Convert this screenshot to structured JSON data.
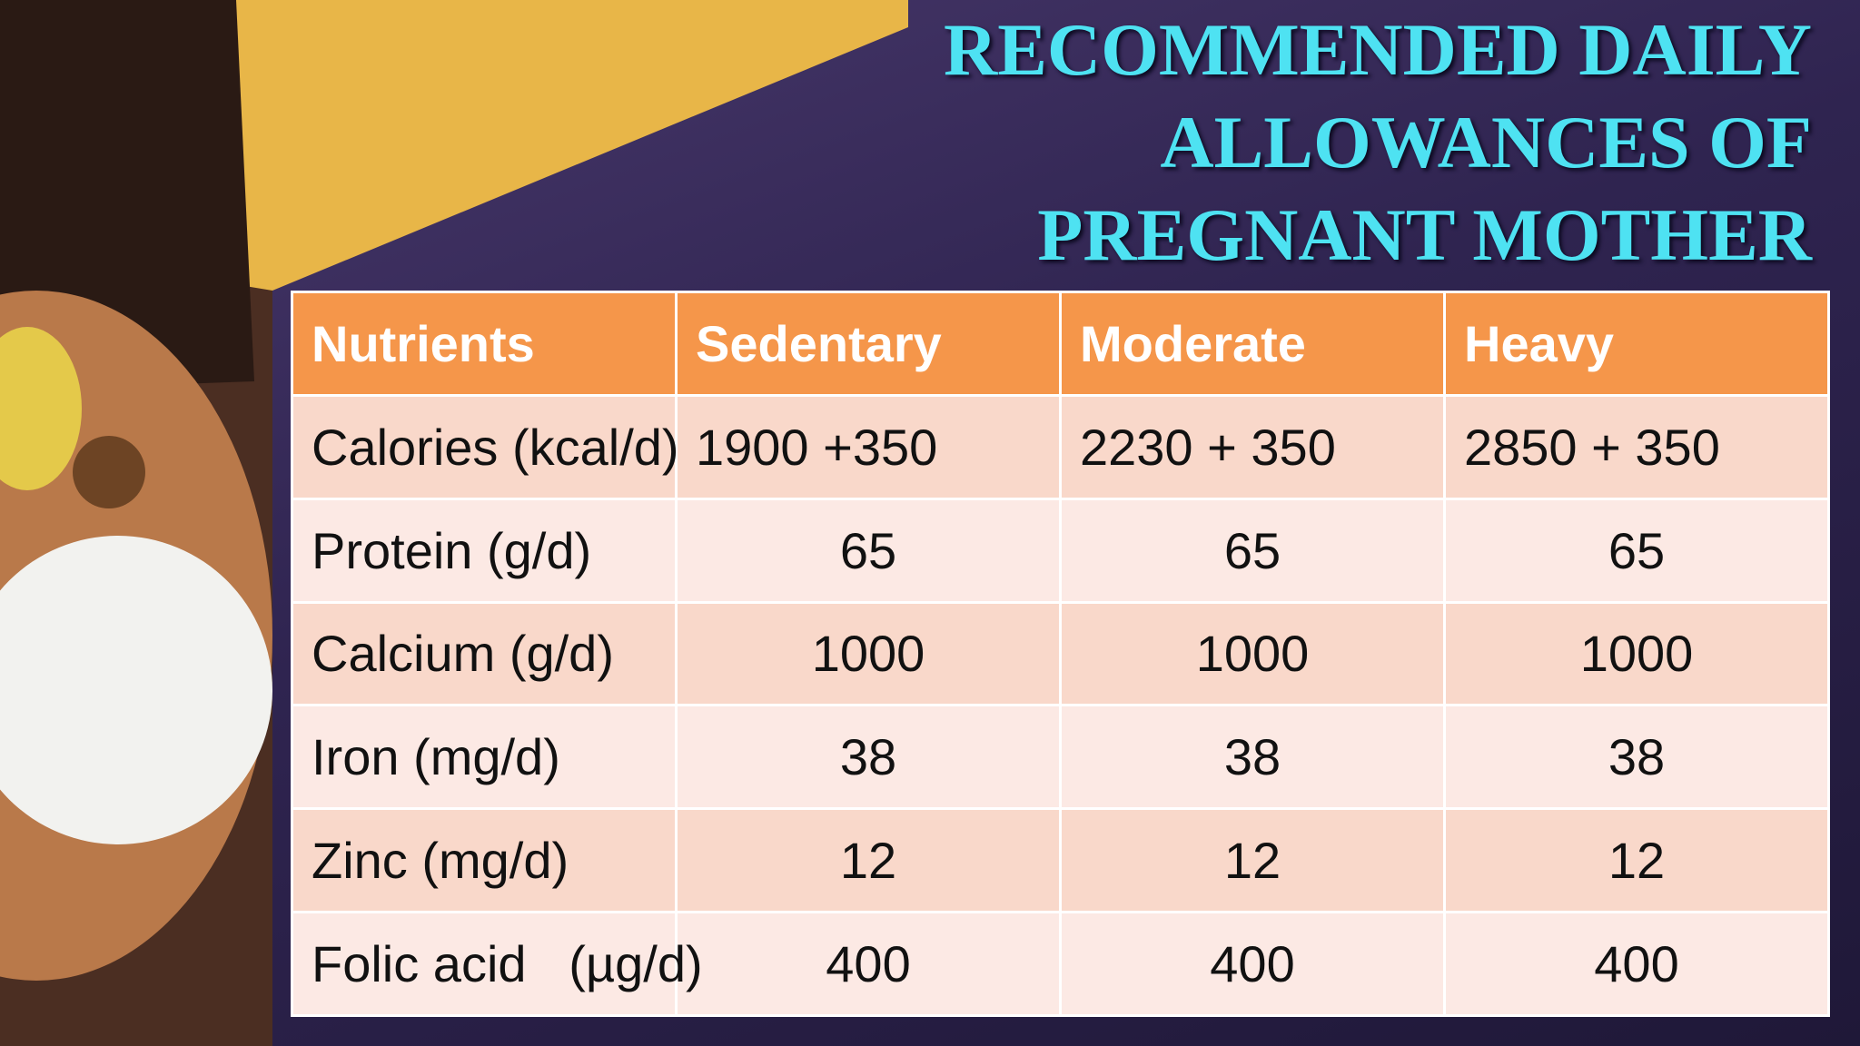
{
  "header": {
    "title_lines": [
      "RECOMMENDED DAILY",
      "ALLOWANCES OF",
      "PREGNANT MOTHER"
    ]
  },
  "table": {
    "columns": [
      "Nutrients",
      "Sedentary",
      "Moderate",
      "Heavy"
    ],
    "rows": [
      [
        "Calories (kcal/d)",
        "1900 +350",
        "2230 + 350",
        "2850 + 350"
      ],
      [
        "Protein (g/d)",
        "65",
        "65",
        "65"
      ],
      [
        "Calcium (g/d)",
        "1000",
        "1000",
        "1000"
      ],
      [
        "Iron (mg/d)",
        "38",
        "38",
        "38"
      ],
      [
        "Zinc (mg/d)",
        "12",
        "12",
        "12"
      ],
      [
        "Folic acid   (µg/d)",
        "400",
        "400",
        "400"
      ]
    ]
  }
}
